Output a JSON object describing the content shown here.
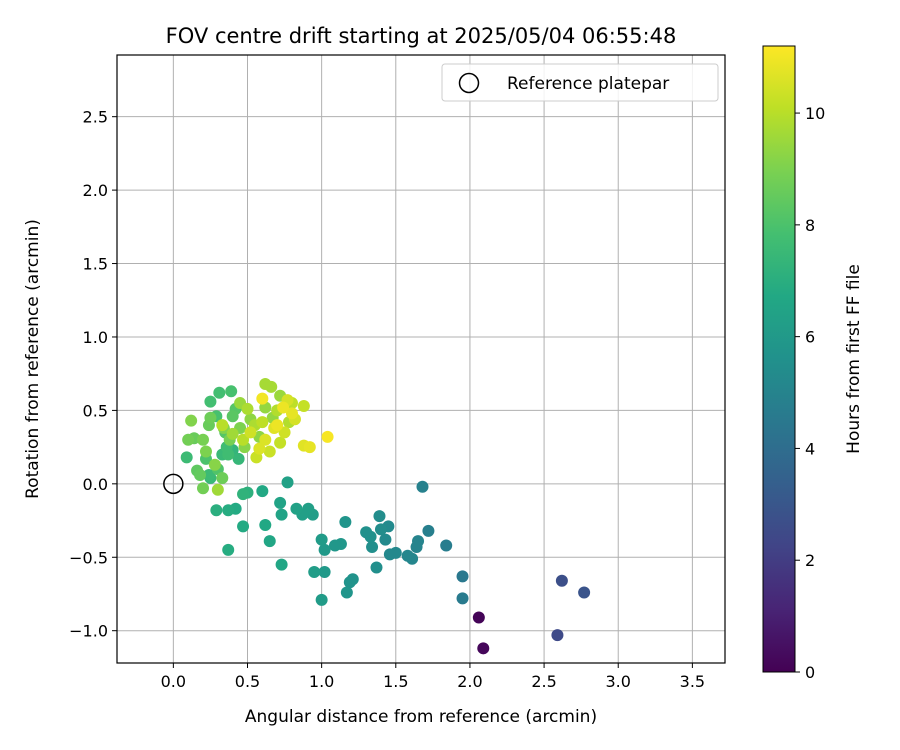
{
  "chart_data": {
    "type": "scatter",
    "title": "FOV centre drift starting at 2025/05/04 06:55:48",
    "xlabel": "Angular distance from reference (arcmin)",
    "ylabel": "Rotation from reference (arcmin)",
    "xlim": [
      -0.38,
      3.72
    ],
    "ylim": [
      -1.22,
      2.92
    ],
    "xticks": [
      0.0,
      0.5,
      1.0,
      1.5,
      2.0,
      2.5,
      3.0,
      3.5
    ],
    "xtick_labels": [
      "0.0",
      "0.5",
      "1.0",
      "1.5",
      "2.0",
      "2.5",
      "3.0",
      "3.5"
    ],
    "yticks": [
      -1.0,
      -0.5,
      0.0,
      0.5,
      1.0,
      1.5,
      2.0,
      2.5
    ],
    "ytick_labels": [
      "−1.0",
      "−0.5",
      "0.0",
      "0.5",
      "1.0",
      "1.5",
      "2.0",
      "2.5"
    ],
    "grid": true,
    "colormap": "viridis",
    "colorbar": {
      "label": "Hours from first FF file",
      "range": [
        0,
        11.2
      ],
      "ticks": [
        0,
        2,
        4,
        6,
        8,
        10
      ],
      "tick_labels": [
        "0",
        "2",
        "4",
        "6",
        "8",
        "10"
      ]
    },
    "legend": {
      "position": "top-right",
      "entries": [
        {
          "label": "Reference platepar",
          "marker": "open-circle"
        }
      ]
    },
    "reference_point": {
      "x": 0.0,
      "y": 0.0
    },
    "points": [
      {
        "x": 2.06,
        "y": -0.91,
        "t": 0.1
      },
      {
        "x": 2.09,
        "y": -1.12,
        "t": 0.2
      },
      {
        "x": 2.59,
        "y": -1.03,
        "t": 2.5
      },
      {
        "x": 2.62,
        "y": -0.66,
        "t": 2.7
      },
      {
        "x": 2.77,
        "y": -0.74,
        "t": 2.9
      },
      {
        "x": 1.95,
        "y": -0.63,
        "t": 4.5
      },
      {
        "x": 1.95,
        "y": -0.78,
        "t": 4.6
      },
      {
        "x": 1.84,
        "y": -0.42,
        "t": 4.7
      },
      {
        "x": 1.72,
        "y": -0.32,
        "t": 4.8
      },
      {
        "x": 1.68,
        "y": -0.02,
        "t": 4.9
      },
      {
        "x": 1.65,
        "y": -0.39,
        "t": 5.0
      },
      {
        "x": 1.64,
        "y": -0.43,
        "t": 5.0
      },
      {
        "x": 1.61,
        "y": -0.51,
        "t": 5.1
      },
      {
        "x": 1.58,
        "y": -0.49,
        "t": 5.1
      },
      {
        "x": 1.5,
        "y": -0.47,
        "t": 5.2
      },
      {
        "x": 1.46,
        "y": -0.48,
        "t": 5.2
      },
      {
        "x": 1.45,
        "y": -0.29,
        "t": 5.3
      },
      {
        "x": 1.43,
        "y": -0.38,
        "t": 5.3
      },
      {
        "x": 1.4,
        "y": -0.31,
        "t": 5.4
      },
      {
        "x": 1.39,
        "y": -0.22,
        "t": 5.4
      },
      {
        "x": 1.37,
        "y": -0.57,
        "t": 5.5
      },
      {
        "x": 1.34,
        "y": -0.43,
        "t": 5.5
      },
      {
        "x": 1.33,
        "y": -0.36,
        "t": 5.6
      },
      {
        "x": 1.3,
        "y": -0.33,
        "t": 5.6
      },
      {
        "x": 1.21,
        "y": -0.65,
        "t": 5.7
      },
      {
        "x": 1.19,
        "y": -0.67,
        "t": 5.7
      },
      {
        "x": 1.17,
        "y": -0.74,
        "t": 5.8
      },
      {
        "x": 1.16,
        "y": -0.26,
        "t": 5.8
      },
      {
        "x": 1.13,
        "y": -0.41,
        "t": 5.9
      },
      {
        "x": 1.09,
        "y": -0.42,
        "t": 5.9
      },
      {
        "x": 1.02,
        "y": -0.45,
        "t": 6.0
      },
      {
        "x": 1.02,
        "y": -0.6,
        "t": 6.0
      },
      {
        "x": 1.0,
        "y": -0.79,
        "t": 6.1
      },
      {
        "x": 1.0,
        "y": -0.38,
        "t": 6.1
      },
      {
        "x": 0.95,
        "y": -0.6,
        "t": 6.2
      },
      {
        "x": 0.94,
        "y": -0.21,
        "t": 6.2
      },
      {
        "x": 0.91,
        "y": -0.17,
        "t": 6.3
      },
      {
        "x": 0.87,
        "y": -0.21,
        "t": 6.3
      },
      {
        "x": 0.83,
        "y": -0.17,
        "t": 6.4
      },
      {
        "x": 0.77,
        "y": 0.01,
        "t": 6.4
      },
      {
        "x": 0.72,
        "y": -0.13,
        "t": 6.5
      },
      {
        "x": 0.73,
        "y": -0.21,
        "t": 6.5
      },
      {
        "x": 0.73,
        "y": -0.55,
        "t": 6.6
      },
      {
        "x": 0.65,
        "y": -0.39,
        "t": 6.6
      },
      {
        "x": 0.62,
        "y": -0.28,
        "t": 6.7
      },
      {
        "x": 0.6,
        "y": -0.05,
        "t": 6.7
      },
      {
        "x": 0.47,
        "y": -0.29,
        "t": 6.8
      },
      {
        "x": 0.42,
        "y": -0.17,
        "t": 6.8
      },
      {
        "x": 0.37,
        "y": -0.18,
        "t": 6.9
      },
      {
        "x": 0.37,
        "y": -0.45,
        "t": 6.9
      },
      {
        "x": 0.29,
        "y": -0.18,
        "t": 7.0
      },
      {
        "x": 0.5,
        "y": -0.06,
        "t": 7.1
      },
      {
        "x": 0.47,
        "y": -0.07,
        "t": 7.2
      },
      {
        "x": 0.4,
        "y": 0.23,
        "t": 7.3
      },
      {
        "x": 0.44,
        "y": 0.17,
        "t": 7.4
      },
      {
        "x": 0.33,
        "y": 0.2,
        "t": 7.5
      },
      {
        "x": 0.25,
        "y": 0.04,
        "t": 7.5
      },
      {
        "x": 0.24,
        "y": 0.06,
        "t": 7.6
      },
      {
        "x": 0.09,
        "y": 0.18,
        "t": 7.6
      },
      {
        "x": 0.36,
        "y": 0.25,
        "t": 7.7
      },
      {
        "x": 0.37,
        "y": 0.2,
        "t": 7.7
      },
      {
        "x": 0.25,
        "y": 0.56,
        "t": 7.8
      },
      {
        "x": 0.31,
        "y": 0.62,
        "t": 7.8
      },
      {
        "x": 0.39,
        "y": 0.63,
        "t": 7.9
      },
      {
        "x": 0.29,
        "y": 0.46,
        "t": 7.9
      },
      {
        "x": 0.22,
        "y": 0.17,
        "t": 8.0
      },
      {
        "x": 0.3,
        "y": 0.1,
        "t": 8.1
      },
      {
        "x": 0.35,
        "y": 0.35,
        "t": 8.2
      },
      {
        "x": 0.42,
        "y": 0.51,
        "t": 8.2
      },
      {
        "x": 0.4,
        "y": 0.46,
        "t": 8.3
      },
      {
        "x": 0.16,
        "y": 0.09,
        "t": 8.4
      },
      {
        "x": 0.18,
        "y": 0.06,
        "t": 8.5
      },
      {
        "x": 0.14,
        "y": 0.31,
        "t": 8.6
      },
      {
        "x": 0.24,
        "y": 0.4,
        "t": 8.6
      },
      {
        "x": 0.25,
        "y": 0.45,
        "t": 8.7
      },
      {
        "x": 0.33,
        "y": 0.04,
        "t": 8.7
      },
      {
        "x": 0.2,
        "y": -0.03,
        "t": 8.8
      },
      {
        "x": 0.1,
        "y": 0.3,
        "t": 8.8
      },
      {
        "x": 0.2,
        "y": 0.3,
        "t": 8.9
      },
      {
        "x": 0.38,
        "y": 0.3,
        "t": 8.9
      },
      {
        "x": 0.45,
        "y": 0.38,
        "t": 9.0
      },
      {
        "x": 0.22,
        "y": 0.22,
        "t": 9.0
      },
      {
        "x": 0.34,
        "y": 0.38,
        "t": 9.1
      },
      {
        "x": 0.12,
        "y": 0.43,
        "t": 9.1
      },
      {
        "x": 0.28,
        "y": 0.13,
        "t": 9.2
      },
      {
        "x": 0.48,
        "y": 0.25,
        "t": 9.2
      },
      {
        "x": 0.52,
        "y": 0.44,
        "t": 9.3
      },
      {
        "x": 0.58,
        "y": 0.32,
        "t": 9.3
      },
      {
        "x": 0.62,
        "y": 0.52,
        "t": 9.4
      },
      {
        "x": 0.67,
        "y": 0.45,
        "t": 9.4
      },
      {
        "x": 0.72,
        "y": 0.6,
        "t": 9.5
      },
      {
        "x": 0.45,
        "y": 0.55,
        "t": 9.5
      },
      {
        "x": 0.3,
        "y": -0.04,
        "t": 9.6
      },
      {
        "x": 0.4,
        "y": 0.34,
        "t": 9.6
      },
      {
        "x": 0.62,
        "y": 0.68,
        "t": 9.7
      },
      {
        "x": 0.66,
        "y": 0.66,
        "t": 9.7
      },
      {
        "x": 0.55,
        "y": 0.4,
        "t": 9.8
      },
      {
        "x": 0.5,
        "y": 0.51,
        "t": 9.8
      },
      {
        "x": 0.7,
        "y": 0.5,
        "t": 9.9
      },
      {
        "x": 0.78,
        "y": 0.42,
        "t": 9.9
      },
      {
        "x": 0.33,
        "y": 0.4,
        "t": 10.0
      },
      {
        "x": 0.47,
        "y": 0.3,
        "t": 10.0
      },
      {
        "x": 0.6,
        "y": 0.42,
        "t": 10.1
      },
      {
        "x": 0.8,
        "y": 0.55,
        "t": 10.1
      },
      {
        "x": 0.88,
        "y": 0.53,
        "t": 10.2
      },
      {
        "x": 0.72,
        "y": 0.28,
        "t": 10.2
      },
      {
        "x": 0.65,
        "y": 0.22,
        "t": 10.3
      },
      {
        "x": 0.56,
        "y": 0.18,
        "t": 10.3
      },
      {
        "x": 0.52,
        "y": 0.35,
        "t": 10.4
      },
      {
        "x": 0.75,
        "y": 0.35,
        "t": 10.4
      },
      {
        "x": 0.82,
        "y": 0.44,
        "t": 10.5
      },
      {
        "x": 0.77,
        "y": 0.57,
        "t": 10.5
      },
      {
        "x": 0.62,
        "y": 0.3,
        "t": 10.6
      },
      {
        "x": 0.58,
        "y": 0.24,
        "t": 10.6
      },
      {
        "x": 0.68,
        "y": 0.38,
        "t": 10.7
      },
      {
        "x": 0.88,
        "y": 0.26,
        "t": 10.7
      },
      {
        "x": 0.92,
        "y": 0.25,
        "t": 10.8
      },
      {
        "x": 0.8,
        "y": 0.48,
        "t": 10.8
      },
      {
        "x": 0.74,
        "y": 0.52,
        "t": 10.9
      },
      {
        "x": 0.7,
        "y": 0.4,
        "t": 10.9
      },
      {
        "x": 0.6,
        "y": 0.58,
        "t": 11.0
      },
      {
        "x": 1.04,
        "y": 0.32,
        "t": 11.1
      }
    ]
  }
}
